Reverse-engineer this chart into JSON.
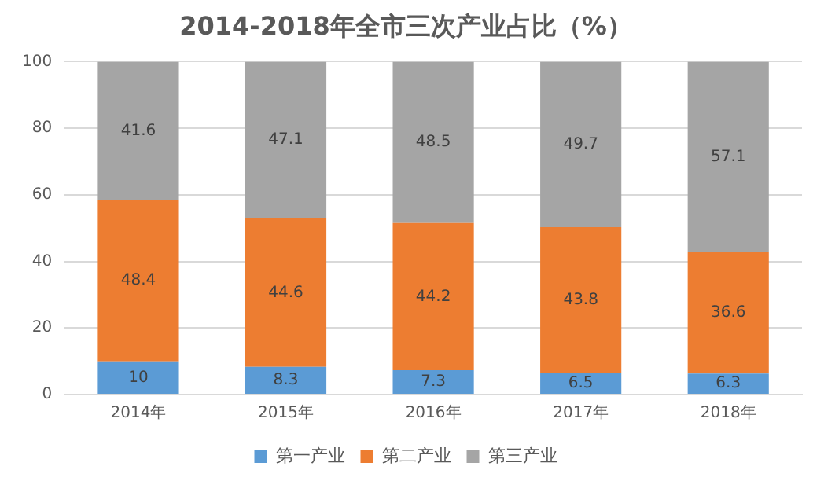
{
  "chart_data": {
    "type": "bar",
    "title": "2014-2018年全市三次产业占比（%）",
    "categories": [
      "2014年",
      "2015年",
      "2016年",
      "2017年",
      "2018年"
    ],
    "series": [
      {
        "name": "第一产业",
        "color": "#5b9bd5",
        "values": [
          10,
          8.3,
          7.3,
          6.5,
          6.3
        ]
      },
      {
        "name": "第二产业",
        "color": "#ed7d31",
        "values": [
          48.4,
          44.6,
          44.2,
          43.8,
          36.6
        ]
      },
      {
        "name": "第三产业",
        "color": "#a5a5a5",
        "values": [
          41.6,
          47.1,
          48.5,
          49.7,
          57.1
        ]
      }
    ],
    "stacked": true,
    "ylim": [
      0,
      100
    ],
    "yticks": [
      0,
      20,
      40,
      60,
      80,
      100
    ],
    "grid": "y",
    "legend": "bottom",
    "data_labels": true
  }
}
